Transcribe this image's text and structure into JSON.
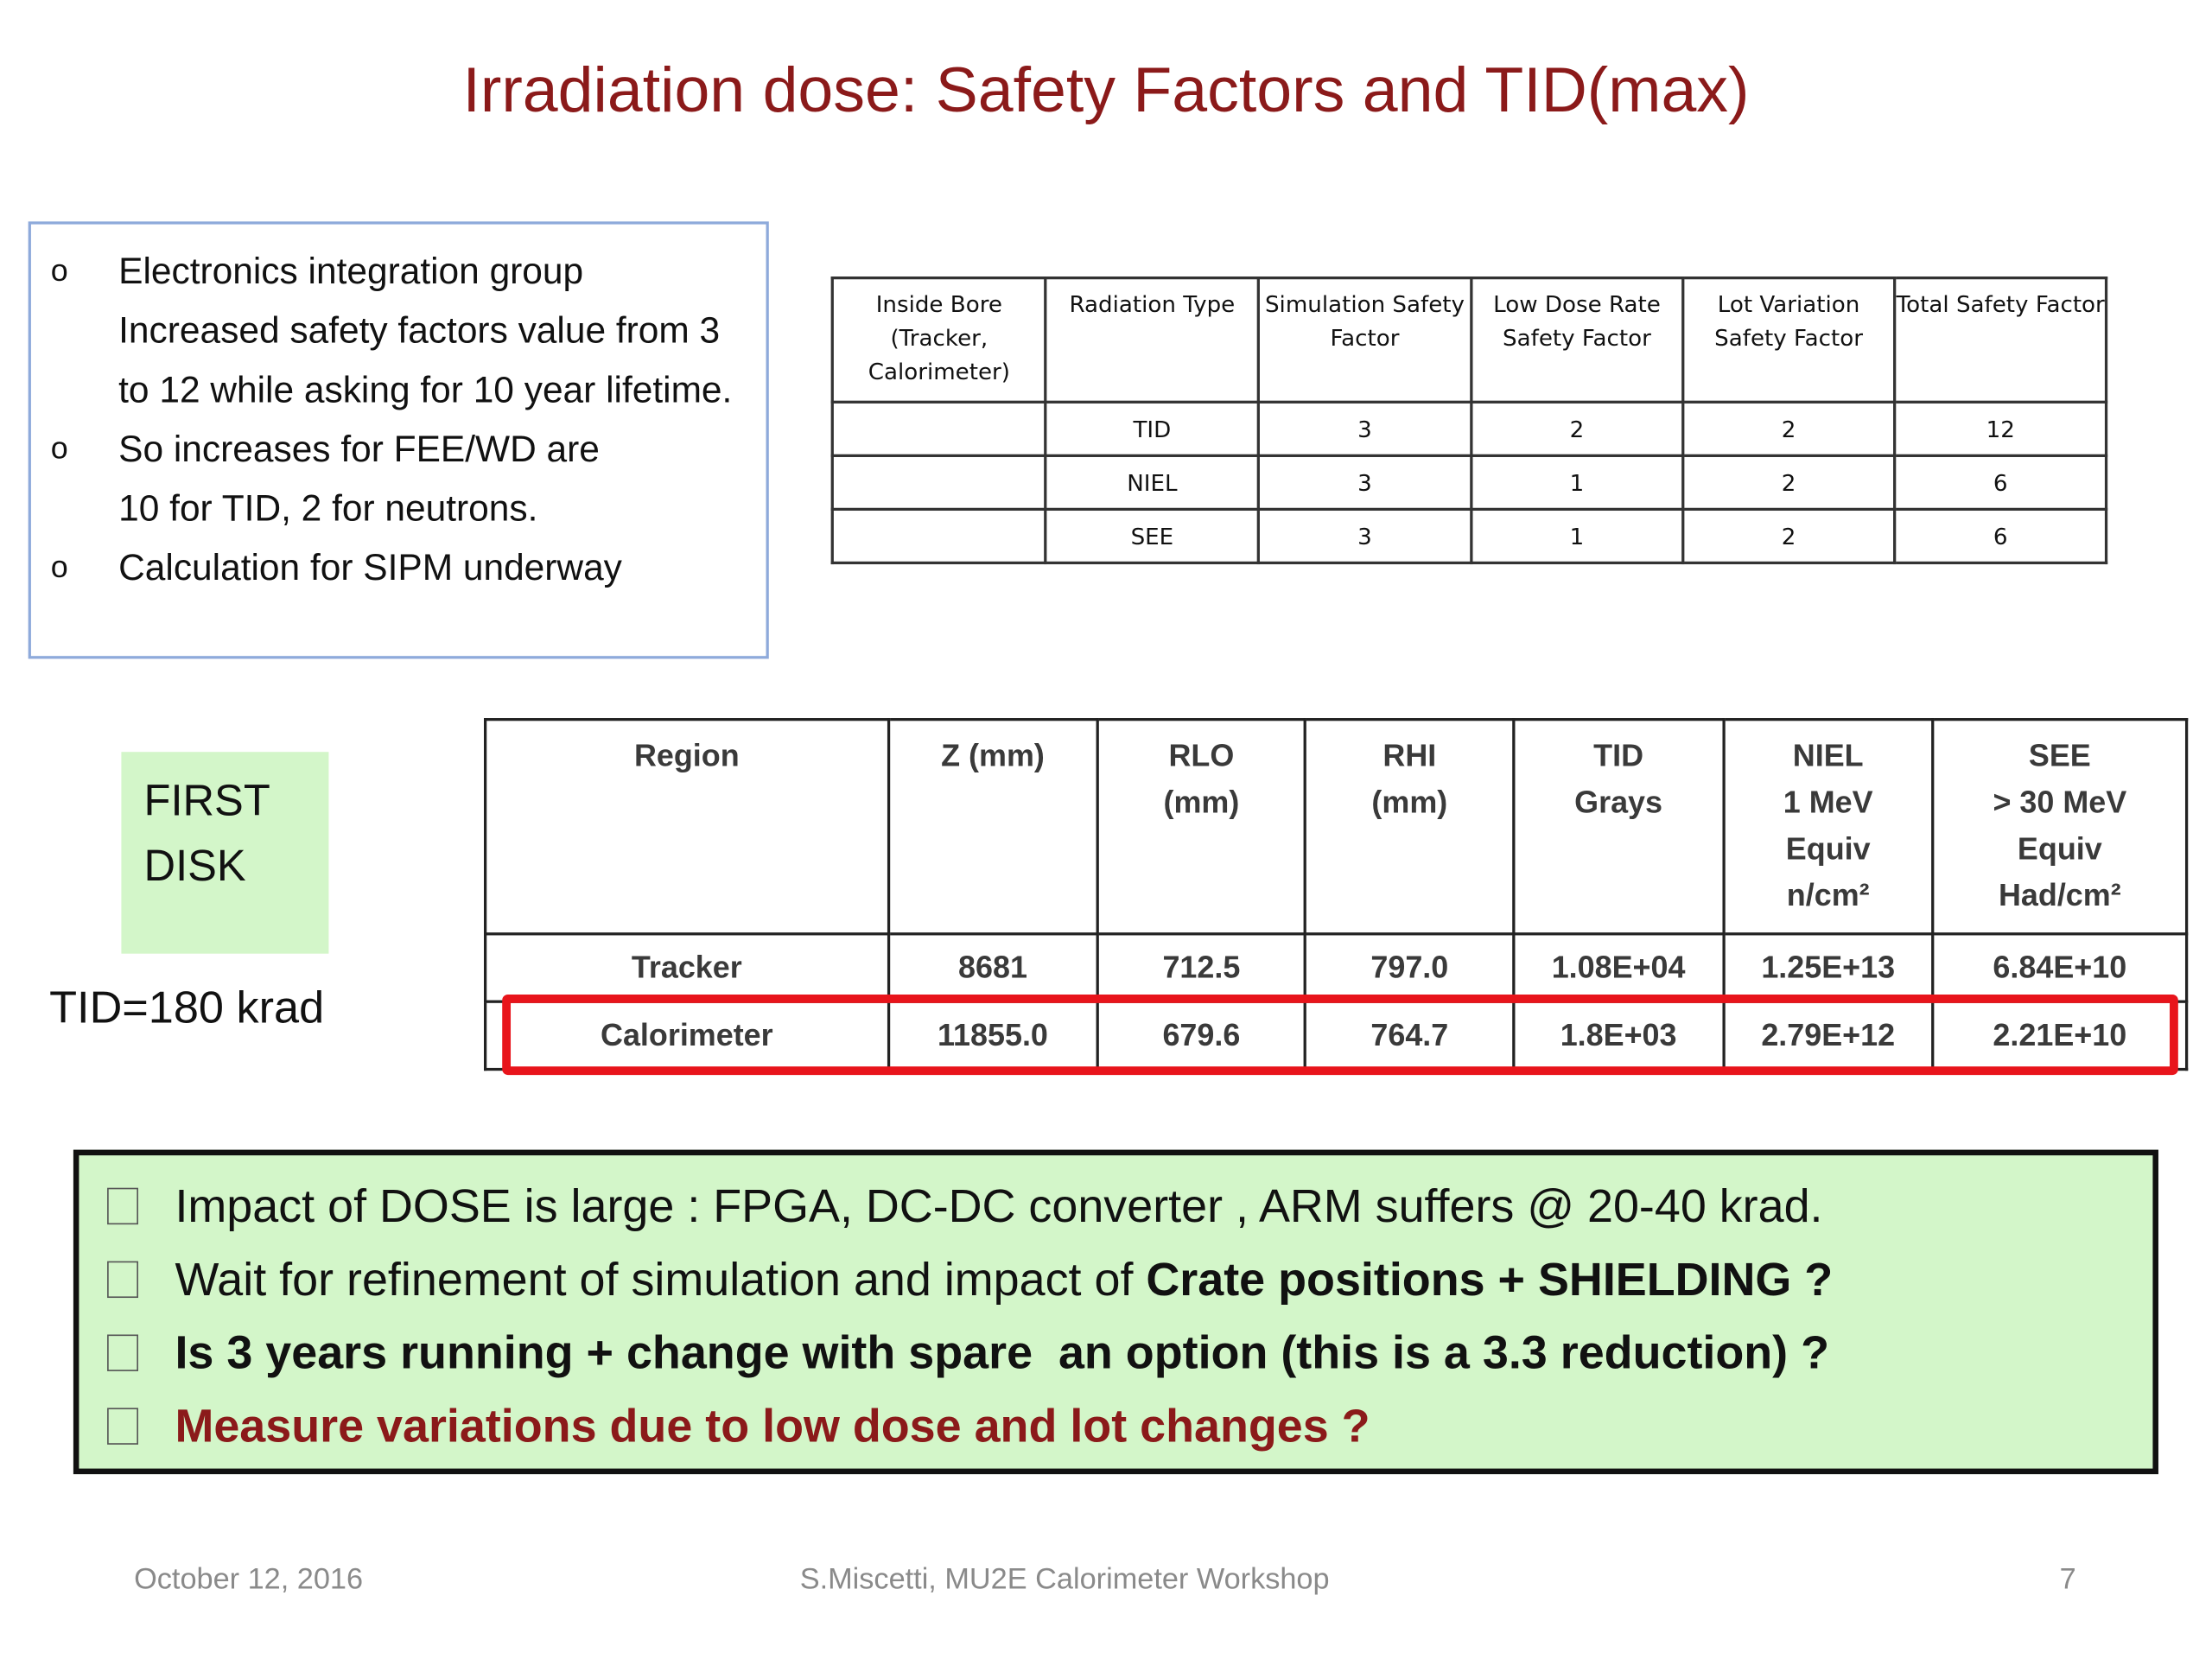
{
  "title": "Irradiation dose: Safety Factors and TID(max)",
  "notes": [
    {
      "bullet": "o",
      "text": "Electronics integration group Increased safety factors value from 3 to 12 while asking for 10 year lifetime."
    },
    {
      "bullet": "o",
      "text": "So increases for FEE/WD are 10 for TID, 2 for neutrons."
    },
    {
      "bullet": "o",
      "text": "Calculation for SIPM underway"
    }
  ],
  "safety_table": {
    "header": [
      "Inside Bore (Tracker, Calorimeter)",
      "Radiation Type",
      "Simulation Safety Factor",
      "Low Dose Rate Safety Factor",
      "Lot Variation Safety Factor",
      "Total Safety Factor"
    ],
    "rows": [
      [
        null,
        "TID",
        "3",
        "2",
        "2",
        "12"
      ],
      [
        null,
        "NIEL",
        "3",
        "1",
        "2",
        "6"
      ],
      [
        null,
        "SEE",
        "3",
        "1",
        "2",
        "6"
      ]
    ]
  },
  "disk_label": "FIRST DISK",
  "tid_note": "TID=180 krad",
  "dose_table": {
    "header": [
      "Region",
      "Z (mm)",
      "RLO\n(mm)",
      "RHI\n(mm)",
      "TID\nGrays",
      "NIEL\n1 MeV\nEquiv\nn/cm²",
      "SEE\n> 30 MeV\nEquiv\nHad/cm²"
    ],
    "rows": [
      [
        "Tracker",
        "8681",
        "712.5",
        "797.0",
        "1.08E+04",
        "1.25E+13",
        "6.84E+10"
      ],
      [
        "Calorimeter",
        "11855.0",
        "679.6",
        "764.7",
        "1.8E+03",
        "2.79E+12",
        "2.21E+10"
      ]
    ]
  },
  "conclusions": [
    {
      "segments": [
        {
          "text": "Impact of DOSE is large : FPGA, DC-DC converter , ARM suffers @ 20-40 krad."
        }
      ]
    },
    {
      "segments": [
        {
          "text": "Wait for refinement of simulation and impact of "
        },
        {
          "text": "Crate positions + SHIELDING ?",
          "bold": true
        }
      ]
    },
    {
      "segments": [
        {
          "text": "Is 3 years running + change with spare  an option (this is a 3.3 reduction) ?",
          "bold": true
        }
      ]
    },
    {
      "segments": [
        {
          "text": "Measure variations due to low dose and lot changes ?",
          "bold": true,
          "color": "#8b1a1a"
        }
      ]
    }
  ],
  "footer": {
    "date": "October 12, 2016",
    "author": "S.Miscetti,  MU2E Calorimeter Workshop",
    "page": "7"
  }
}
